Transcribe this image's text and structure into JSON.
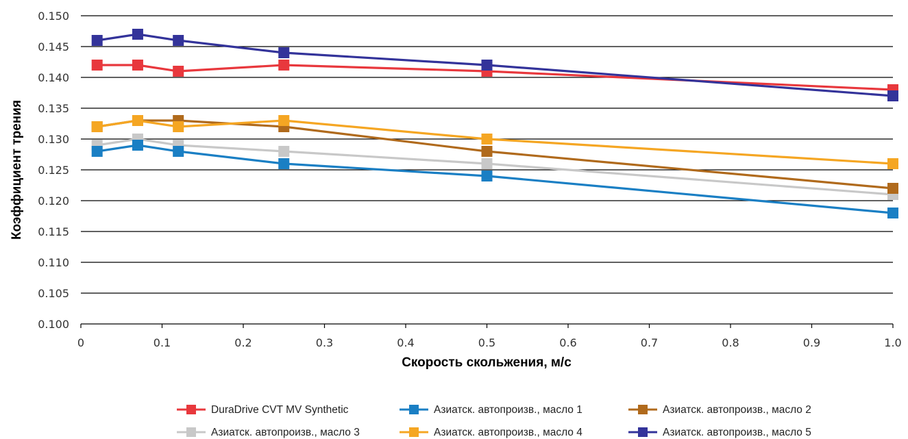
{
  "chart_data": {
    "type": "line",
    "xlabel": "Скорость скольжения, м/с",
    "ylabel": "Коэффициент трения",
    "xlim": [
      0,
      1.0
    ],
    "ylim": [
      0.1,
      0.15
    ],
    "x_ticks": [
      "0",
      "0.1",
      "0.2",
      "0.3",
      "0.4",
      "0.5",
      "0.6",
      "0.7",
      "0.8",
      "0.9",
      "1.0"
    ],
    "y_ticks": [
      "0.100",
      "0.105",
      "0.110",
      "0.115",
      "0.120",
      "0.125",
      "0.130",
      "0.135",
      "0.140",
      "0.145",
      "0.150"
    ],
    "grid": "horizontal",
    "legend_position": "bottom",
    "x": [
      0.02,
      0.07,
      0.12,
      0.25,
      0.5,
      1.0
    ],
    "series": [
      {
        "name": "DuraDrive CVT MV Synthetic",
        "color": "#e8383d",
        "values": [
          0.142,
          0.142,
          0.141,
          0.142,
          0.141,
          0.138
        ]
      },
      {
        "name": "Азиатск. автопроизв., масло 1",
        "color": "#1a7fc4",
        "values": [
          0.128,
          0.129,
          0.128,
          0.126,
          0.124,
          0.118
        ]
      },
      {
        "name": "Азиатск. автопроизв., масло 2",
        "color": "#b06a1c",
        "values": [
          0.132,
          0.133,
          0.133,
          0.132,
          0.128,
          0.122
        ]
      },
      {
        "name": "Азиатск. автопроизв., масло 3",
        "color": "#c8c8c8",
        "values": [
          0.129,
          0.13,
          0.129,
          0.128,
          0.126,
          0.121
        ]
      },
      {
        "name": "Азиатск. автопроизв., масло 4",
        "color": "#f5a623",
        "values": [
          0.132,
          0.133,
          0.132,
          0.133,
          0.13,
          0.126
        ]
      },
      {
        "name": "Азиатск. автопроизв., масло 5",
        "color": "#33339a",
        "values": [
          0.146,
          0.147,
          0.146,
          0.144,
          0.142,
          0.137
        ]
      }
    ]
  }
}
